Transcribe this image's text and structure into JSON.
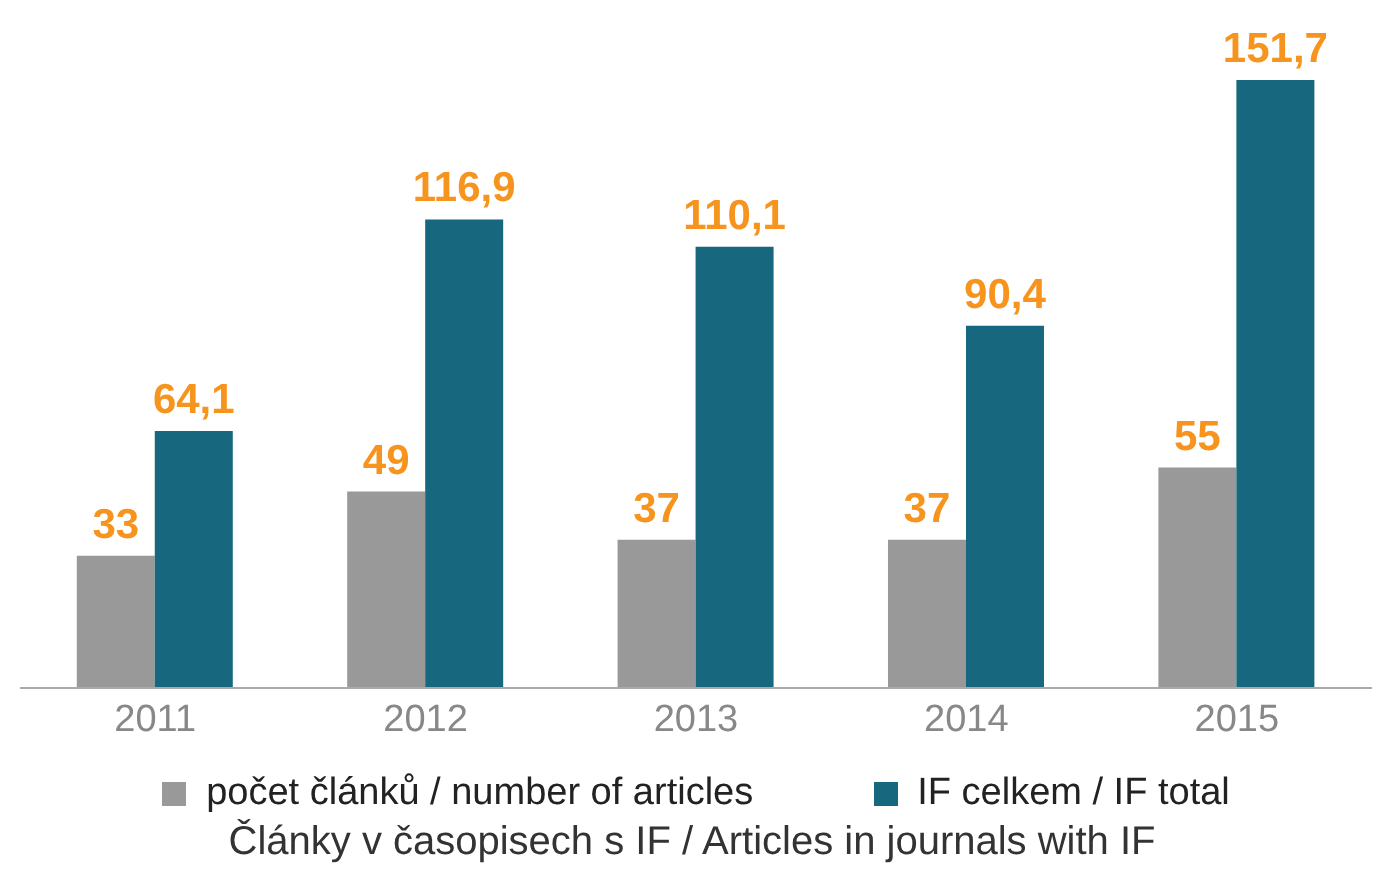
{
  "chart_data": {
    "type": "bar",
    "title": "Články v časopisech s IF / Articles in journals with IF",
    "categories": [
      "2011",
      "2012",
      "2013",
      "2014",
      "2015"
    ],
    "tick_labels": "x",
    "series": [
      {
        "name": "počet článků / number of articles",
        "color": "#999999",
        "values": [
          33,
          49,
          37,
          37,
          55
        ],
        "value_labels": [
          "33",
          "49",
          "37",
          "37",
          "55"
        ]
      },
      {
        "name": "IF celkem / IF total",
        "color": "#17677f",
        "values": [
          64.1,
          116.9,
          110.1,
          90.4,
          151.7
        ],
        "value_labels": [
          "64,1",
          "116,9",
          "110,1",
          "90,4",
          "151,7"
        ]
      }
    ],
    "legend": "bottom",
    "grid": false
  }
}
